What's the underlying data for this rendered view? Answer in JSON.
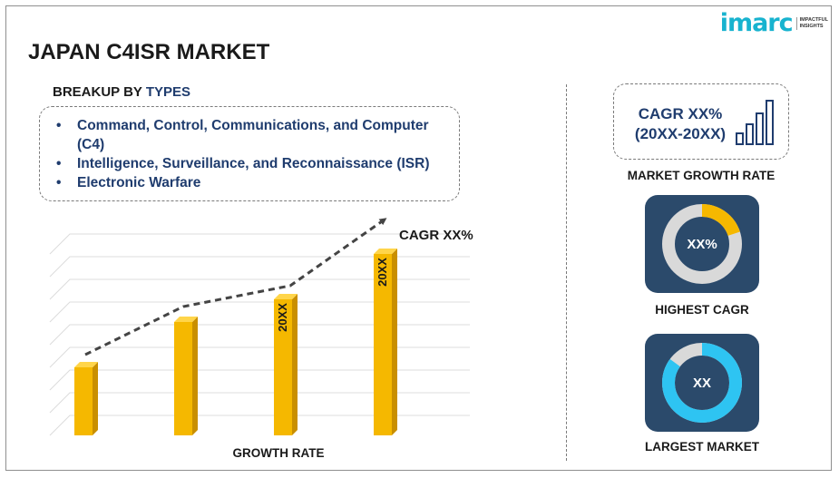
{
  "brand": {
    "logo_text": "imarc",
    "tagline_line1": "IMPACTFUL",
    "tagline_line2": "INSIGHTS",
    "accent_color": "#18b3cf"
  },
  "title": "JAPAN C4ISR MARKET",
  "breakup": {
    "heading_prefix": "BREAKUP BY ",
    "heading_accent": "TYPES",
    "items": [
      "Command, Control, Communications, and Computer (C4)",
      "Intelligence, Surveillance, and Reconnaissance (ISR)",
      "Electronic Warfare"
    ]
  },
  "chart_data": {
    "type": "bar",
    "xlabel": "GROWTH RATE",
    "bar_color": "#f5b800",
    "values": [
      30,
      50,
      60,
      80
    ],
    "data_labels": [
      "",
      "",
      "20XX",
      "20XX"
    ],
    "trend_label": "CAGR XX%",
    "grid": true,
    "ylim": [
      0,
      100
    ]
  },
  "right_panel": {
    "cagr_line1": "CAGR XX%",
    "cagr_line2": "(20XX-20XX)",
    "growth_label": "MARKET GROWTH RATE",
    "highest_cagr": {
      "value": "XX%",
      "label": "HIGHEST CAGR",
      "ring_fill_color": "#f5b800",
      "ring_base_color": "#d9d9d9",
      "fraction": 0.2
    },
    "largest_market": {
      "value": "XX",
      "label": "LARGEST MARKET",
      "ring_fill_color": "#2ec4f2",
      "ring_base_color": "#d9d9d9",
      "fraction": 0.85
    },
    "card_color": "#2b4a6b",
    "text_color": "#1f3c6e"
  }
}
